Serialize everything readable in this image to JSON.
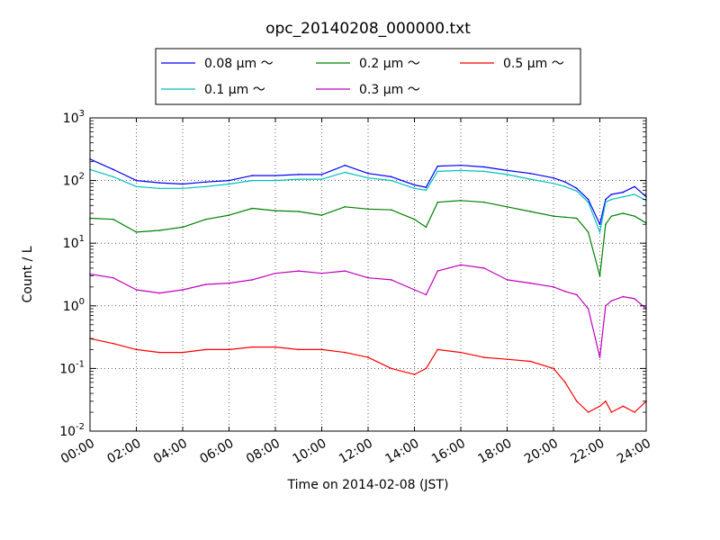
{
  "chart_data": {
    "type": "line",
    "title": "opc_20140208_000000.txt",
    "xlabel": "Time on 2014-02-08 (JST)",
    "ylabel": "Count / L",
    "y_scale": "log",
    "xlim": [
      "00:00",
      "24:00"
    ],
    "ylim": [
      0.01,
      1000
    ],
    "grid": true,
    "legend_position": "top-center, outside plot",
    "x_tick_labels": [
      "00:00",
      "02:00",
      "04:00",
      "06:00",
      "08:00",
      "10:00",
      "12:00",
      "14:00",
      "16:00",
      "18:00",
      "20:00",
      "22:00",
      "24:00"
    ],
    "y_tick_labels": [
      {
        "base": "10",
        "exp": "-2"
      },
      {
        "base": "10",
        "exp": "-1"
      },
      {
        "base": "10",
        "exp": "0"
      },
      {
        "base": "10",
        "exp": "1"
      },
      {
        "base": "10",
        "exp": "2"
      },
      {
        "base": "10",
        "exp": "3"
      }
    ],
    "x": [
      "00:00",
      "01:00",
      "02:00",
      "03:00",
      "04:00",
      "05:00",
      "06:00",
      "07:00",
      "08:00",
      "09:00",
      "10:00",
      "11:00",
      "12:00",
      "13:00",
      "14:00",
      "14:30",
      "15:00",
      "16:00",
      "17:00",
      "18:00",
      "19:00",
      "20:00",
      "20:30",
      "21:00",
      "21:30",
      "22:00",
      "22:15",
      "22:30",
      "23:00",
      "23:30",
      "24:00"
    ],
    "series": [
      {
        "name": "0.08 μm ～",
        "color": "#0000ff",
        "values": [
          220,
          150,
          100,
          92,
          88,
          95,
          100,
          120,
          120,
          125,
          125,
          175,
          130,
          115,
          85,
          78,
          170,
          175,
          165,
          145,
          130,
          110,
          95,
          75,
          50,
          20,
          50,
          60,
          65,
          80,
          55
        ]
      },
      {
        "name": "0.1 μm ～",
        "color": "#00bfbf",
        "values": [
          150,
          115,
          80,
          75,
          75,
          80,
          88,
          100,
          100,
          105,
          105,
          135,
          110,
          100,
          75,
          70,
          140,
          145,
          140,
          125,
          105,
          90,
          80,
          68,
          45,
          15,
          45,
          50,
          55,
          60,
          48
        ]
      },
      {
        "name": "0.2 μm ～",
        "color": "#008000",
        "values": [
          25,
          24,
          15,
          16,
          18,
          24,
          28,
          36,
          33,
          32,
          28,
          38,
          35,
          34,
          24,
          18,
          45,
          48,
          45,
          38,
          32,
          27,
          26,
          25,
          15,
          3,
          20,
          27,
          30,
          27,
          21
        ]
      },
      {
        "name": "0.3 μm ～",
        "color": "#bf00bf",
        "values": [
          3.2,
          2.8,
          1.8,
          1.6,
          1.8,
          2.2,
          2.3,
          2.6,
          3.3,
          3.6,
          3.3,
          3.6,
          2.8,
          2.6,
          1.8,
          1.5,
          3.6,
          4.5,
          4.0,
          2.6,
          2.3,
          2.0,
          1.7,
          1.5,
          0.9,
          0.15,
          1.0,
          1.2,
          1.4,
          1.3,
          0.9
        ]
      },
      {
        "name": "0.5 μm ～",
        "color": "#ff0000",
        "values": [
          0.3,
          0.25,
          0.2,
          0.18,
          0.18,
          0.2,
          0.2,
          0.22,
          0.22,
          0.2,
          0.2,
          0.18,
          0.15,
          0.1,
          0.08,
          0.1,
          0.2,
          0.18,
          0.15,
          0.14,
          0.13,
          0.1,
          0.06,
          0.03,
          0.02,
          0.025,
          0.03,
          0.02,
          0.025,
          0.02,
          0.03
        ]
      }
    ]
  }
}
